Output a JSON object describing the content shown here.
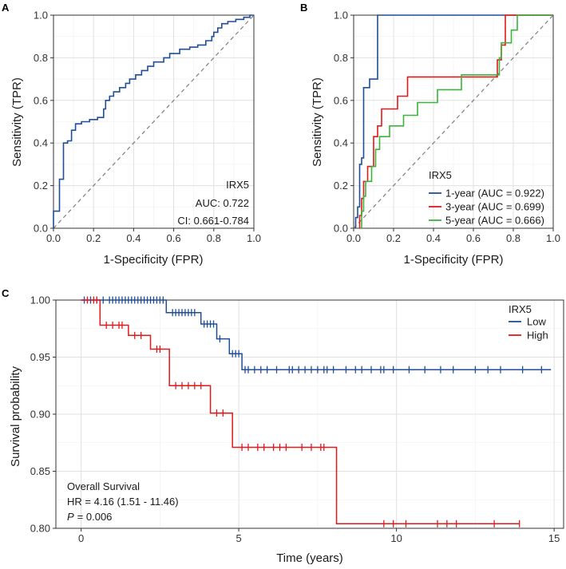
{
  "chart_data": [
    {
      "panel": "A",
      "type": "line",
      "title": "",
      "xlabel": "1-Specificity (FPR)",
      "ylabel": "Sensitivity (TPR)",
      "xlim": [
        0,
        1
      ],
      "ylim": [
        0,
        1
      ],
      "xticks": [
        "0.0",
        "0.2",
        "0.4",
        "0.6",
        "0.8",
        "1.0"
      ],
      "yticks": [
        "0.0",
        "0.2",
        "0.4",
        "0.6",
        "0.8",
        "1.0"
      ],
      "grid": true,
      "diagonal": true,
      "series": [
        {
          "name": "IRX5",
          "color": "#1f4e96",
          "points": [
            [
              0,
              0
            ],
            [
              0,
              0.08
            ],
            [
              0.03,
              0.08
            ],
            [
              0.03,
              0.23
            ],
            [
              0.05,
              0.23
            ],
            [
              0.05,
              0.4
            ],
            [
              0.07,
              0.4
            ],
            [
              0.07,
              0.41
            ],
            [
              0.09,
              0.41
            ],
            [
              0.09,
              0.46
            ],
            [
              0.11,
              0.46
            ],
            [
              0.11,
              0.49
            ],
            [
              0.14,
              0.49
            ],
            [
              0.14,
              0.5
            ],
            [
              0.18,
              0.5
            ],
            [
              0.18,
              0.51
            ],
            [
              0.22,
              0.51
            ],
            [
              0.22,
              0.52
            ],
            [
              0.25,
              0.52
            ],
            [
              0.25,
              0.56
            ],
            [
              0.26,
              0.56
            ],
            [
              0.26,
              0.6
            ],
            [
              0.28,
              0.6
            ],
            [
              0.28,
              0.62
            ],
            [
              0.3,
              0.62
            ],
            [
              0.3,
              0.64
            ],
            [
              0.33,
              0.64
            ],
            [
              0.33,
              0.66
            ],
            [
              0.36,
              0.66
            ],
            [
              0.36,
              0.68
            ],
            [
              0.38,
              0.68
            ],
            [
              0.38,
              0.7
            ],
            [
              0.41,
              0.7
            ],
            [
              0.41,
              0.72
            ],
            [
              0.44,
              0.72
            ],
            [
              0.44,
              0.74
            ],
            [
              0.47,
              0.74
            ],
            [
              0.47,
              0.76
            ],
            [
              0.5,
              0.76
            ],
            [
              0.5,
              0.78
            ],
            [
              0.55,
              0.78
            ],
            [
              0.55,
              0.8
            ],
            [
              0.58,
              0.8
            ],
            [
              0.58,
              0.82
            ],
            [
              0.63,
              0.82
            ],
            [
              0.63,
              0.84
            ],
            [
              0.68,
              0.84
            ],
            [
              0.68,
              0.85
            ],
            [
              0.72,
              0.85
            ],
            [
              0.72,
              0.86
            ],
            [
              0.76,
              0.86
            ],
            [
              0.76,
              0.88
            ],
            [
              0.79,
              0.88
            ],
            [
              0.79,
              0.9
            ],
            [
              0.8,
              0.9
            ],
            [
              0.8,
              0.92
            ],
            [
              0.82,
              0.92
            ],
            [
              0.82,
              0.94
            ],
            [
              0.84,
              0.94
            ],
            [
              0.84,
              0.96
            ],
            [
              0.87,
              0.96
            ],
            [
              0.87,
              0.97
            ],
            [
              0.91,
              0.97
            ],
            [
              0.91,
              0.98
            ],
            [
              0.95,
              0.98
            ],
            [
              0.95,
              0.99
            ],
            [
              0.98,
              0.99
            ],
            [
              0.98,
              1.0
            ],
            [
              1.0,
              1.0
            ]
          ]
        }
      ],
      "legend": {
        "position": "bottom-right",
        "lines": [
          "IRX5",
          "AUC: 0.722",
          "CI: 0.661-0.784"
        ]
      }
    },
    {
      "panel": "B",
      "type": "line",
      "title": "",
      "xlabel": "1-Specificity (FPR)",
      "ylabel": "Sensitivity (TPR)",
      "xlim": [
        0,
        1
      ],
      "ylim": [
        0,
        1
      ],
      "xticks": [
        "0.0",
        "0.2",
        "0.4",
        "0.6",
        "0.8",
        "1.0"
      ],
      "yticks": [
        "0.0",
        "0.2",
        "0.4",
        "0.6",
        "0.8",
        "1.0"
      ],
      "grid": true,
      "diagonal": true,
      "legend": {
        "position": "bottom-right",
        "title": "IRX5"
      },
      "series": [
        {
          "name": "1-year (AUC = 0.922)",
          "color": "#1f4e96",
          "points": [
            [
              0.01,
              0
            ],
            [
              0.01,
              0.05
            ],
            [
              0.02,
              0.05
            ],
            [
              0.02,
              0.1
            ],
            [
              0.03,
              0.1
            ],
            [
              0.03,
              0.3
            ],
            [
              0.04,
              0.3
            ],
            [
              0.04,
              0.33
            ],
            [
              0.05,
              0.33
            ],
            [
              0.05,
              0.66
            ],
            [
              0.08,
              0.66
            ],
            [
              0.08,
              0.7
            ],
            [
              0.12,
              0.7
            ],
            [
              0.12,
              1.0
            ],
            [
              0.7,
              1.0
            ],
            [
              1.0,
              1.0
            ]
          ]
        },
        {
          "name": "3-year (AUC = 0.699)",
          "color": "#e0191b",
          "points": [
            [
              0.03,
              0
            ],
            [
              0.03,
              0.06
            ],
            [
              0.04,
              0.06
            ],
            [
              0.04,
              0.14
            ],
            [
              0.05,
              0.14
            ],
            [
              0.05,
              0.22
            ],
            [
              0.07,
              0.22
            ],
            [
              0.07,
              0.29
            ],
            [
              0.1,
              0.29
            ],
            [
              0.1,
              0.43
            ],
            [
              0.12,
              0.43
            ],
            [
              0.12,
              0.48
            ],
            [
              0.14,
              0.48
            ],
            [
              0.14,
              0.56
            ],
            [
              0.22,
              0.56
            ],
            [
              0.22,
              0.62
            ],
            [
              0.27,
              0.62
            ],
            [
              0.27,
              0.71
            ],
            [
              0.72,
              0.71
            ],
            [
              0.72,
              0.79
            ],
            [
              0.74,
              0.79
            ],
            [
              0.74,
              0.86
            ],
            [
              0.76,
              0.86
            ],
            [
              0.76,
              1.0
            ],
            [
              1.0,
              1.0
            ]
          ]
        },
        {
          "name": "5-year (AUC = 0.666)",
          "color": "#3cb43c",
          "points": [
            [
              0.04,
              0
            ],
            [
              0.04,
              0.08
            ],
            [
              0.05,
              0.08
            ],
            [
              0.05,
              0.15
            ],
            [
              0.06,
              0.15
            ],
            [
              0.06,
              0.22
            ],
            [
              0.09,
              0.22
            ],
            [
              0.09,
              0.29
            ],
            [
              0.11,
              0.29
            ],
            [
              0.11,
              0.37
            ],
            [
              0.13,
              0.37
            ],
            [
              0.13,
              0.43
            ],
            [
              0.18,
              0.43
            ],
            [
              0.18,
              0.48
            ],
            [
              0.25,
              0.48
            ],
            [
              0.25,
              0.53
            ],
            [
              0.32,
              0.53
            ],
            [
              0.32,
              0.59
            ],
            [
              0.42,
              0.59
            ],
            [
              0.42,
              0.65
            ],
            [
              0.54,
              0.65
            ],
            [
              0.54,
              0.72
            ],
            [
              0.73,
              0.72
            ],
            [
              0.73,
              0.8
            ],
            [
              0.74,
              0.8
            ],
            [
              0.74,
              0.87
            ],
            [
              0.79,
              0.87
            ],
            [
              0.79,
              0.93
            ],
            [
              0.82,
              0.93
            ],
            [
              0.82,
              1.0
            ],
            [
              1.0,
              1.0
            ]
          ]
        }
      ]
    },
    {
      "panel": "C",
      "type": "line",
      "title": "",
      "xlabel": "Time (years)",
      "ylabel": "Survival probability",
      "xlim": [
        -0.8,
        15.3
      ],
      "ylim": [
        0.8,
        1.0
      ],
      "xticks": [
        "0",
        "5",
        "10",
        "15"
      ],
      "yticks": [
        "0.80",
        "0.85",
        "0.90",
        "0.95",
        "1.00"
      ],
      "grid": true,
      "legend": {
        "position": "top-right",
        "title": "IRX5"
      },
      "annotation": {
        "lines": [
          "Overall Survival",
          "HR = 4.16 (1.51 -  11.46)",
          "= 0.006"
        ],
        "p_label": "P"
      },
      "series": [
        {
          "name": "Low",
          "color": "#1f4e96",
          "steps": [
            [
              0,
              1.0
            ],
            [
              2.7,
              0.989
            ],
            [
              3.8,
              0.979
            ],
            [
              4.3,
              0.966
            ],
            [
              4.7,
              0.953
            ],
            [
              5.1,
              0.939
            ],
            [
              14.9,
              0.939
            ]
          ],
          "censors": [
            0.1,
            0.3,
            0.5,
            0.7,
            0.9,
            1.0,
            1.1,
            1.2,
            1.3,
            1.4,
            1.5,
            1.6,
            1.7,
            1.8,
            1.9,
            2.0,
            2.1,
            2.2,
            2.3,
            2.4,
            2.5,
            2.6,
            2.9,
            3.0,
            3.1,
            3.2,
            3.3,
            3.4,
            3.5,
            3.6,
            3.9,
            4.0,
            4.1,
            4.2,
            4.4,
            4.8,
            4.9,
            5.0,
            5.2,
            5.3,
            5.5,
            5.7,
            5.9,
            6.2,
            6.6,
            6.7,
            6.9,
            7.1,
            7.3,
            7.5,
            7.7,
            7.8,
            8.0,
            8.4,
            8.7,
            8.9,
            9.2,
            9.5,
            9.6,
            9.9,
            10.4,
            10.9,
            11.4,
            11.8,
            12.5,
            12.9,
            13.3,
            14.0,
            14.6
          ]
        },
        {
          "name": "High",
          "color": "#e0191b",
          "steps": [
            [
              0,
              1.0
            ],
            [
              0.6,
              0.978
            ],
            [
              1.5,
              0.969
            ],
            [
              2.2,
              0.957
            ],
            [
              2.8,
              0.925
            ],
            [
              4.1,
              0.901
            ],
            [
              4.8,
              0.871
            ],
            [
              8.1,
              0.804
            ],
            [
              13.9,
              0.804
            ]
          ],
          "censors": [
            0.2,
            0.4,
            0.5,
            0.8,
            1.0,
            1.2,
            1.3,
            1.7,
            1.9,
            2.4,
            2.5,
            3.0,
            3.2,
            3.4,
            3.6,
            3.8,
            4.3,
            4.5,
            5.1,
            5.3,
            5.6,
            5.8,
            6.1,
            6.3,
            6.5,
            7.0,
            7.3,
            7.6,
            7.7,
            9.6,
            9.9,
            10.3,
            11.3,
            11.6,
            11.9,
            13.1,
            13.9
          ]
        }
      ]
    }
  ]
}
